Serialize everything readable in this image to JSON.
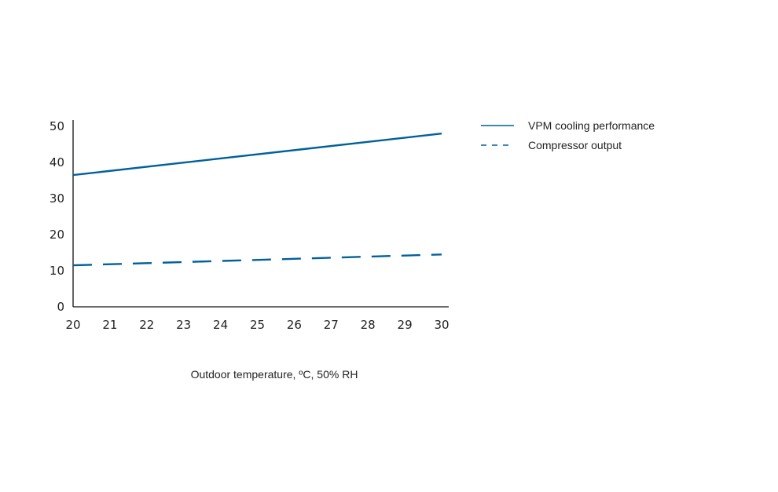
{
  "chart_data": {
    "type": "line",
    "xlabel": "Outdoor temperature, ºC, 50% RH",
    "ylabel": "",
    "xlim": [
      20,
      30
    ],
    "ylim": [
      0,
      50
    ],
    "x_ticks": [
      "20",
      "21",
      "22",
      "23",
      "24",
      "25",
      "26",
      "27",
      "28",
      "29",
      "30"
    ],
    "y_ticks": [
      "0",
      "10",
      "20",
      "30",
      "40",
      "50"
    ],
    "grid": false,
    "legend_position": "right",
    "series_color": "#00609c",
    "series": [
      {
        "name": "VPM cooling performance",
        "style": "solid",
        "x": [
          20,
          30
        ],
        "y": [
          36.5,
          48
        ]
      },
      {
        "name": "Compressor output",
        "style": "dashed",
        "x": [
          20,
          30
        ],
        "y": [
          11.5,
          14.5
        ]
      }
    ]
  }
}
